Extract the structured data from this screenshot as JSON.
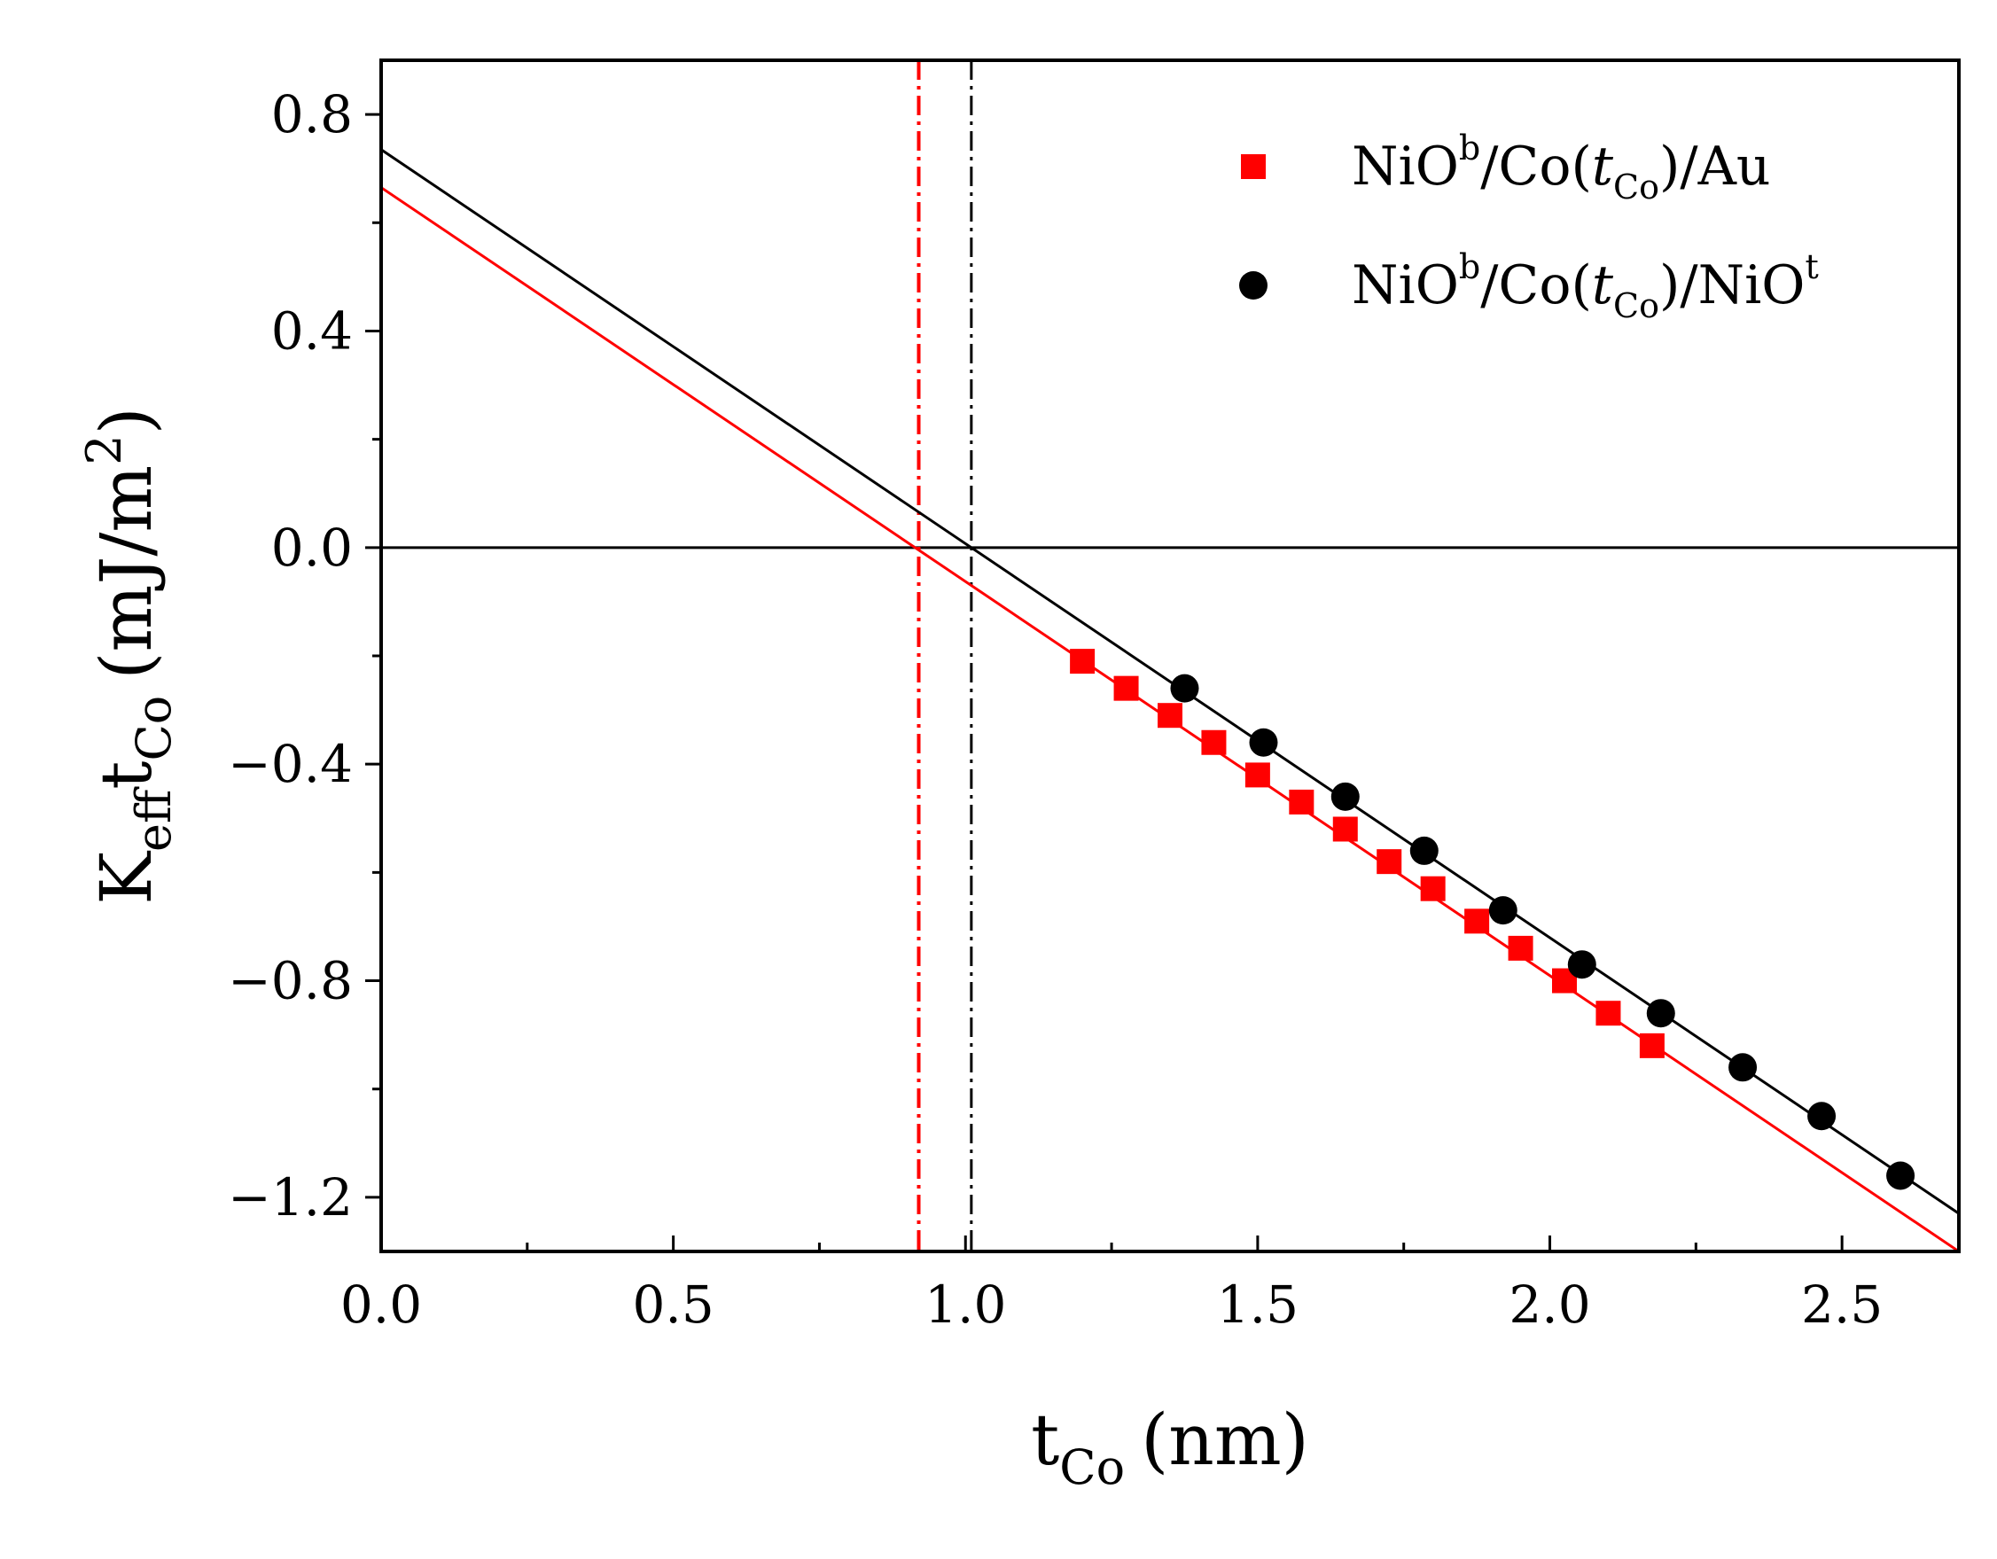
{
  "chart_data": {
    "type": "scatter",
    "title": "",
    "xlabel": {
      "main": "t",
      "sub": "Co",
      "units": "(nm)"
    },
    "ylabel": {
      "k": "K",
      "k_sub": "eff",
      "t": "t",
      "t_sub": "Co",
      "units_open": "(mJ/m",
      "units_sup": "2",
      "units_close": ")"
    },
    "xlim": [
      0.0,
      2.7
    ],
    "ylim": [
      -1.3,
      0.9
    ],
    "xticks": [
      0.0,
      0.5,
      1.0,
      1.5,
      2.0,
      2.5
    ],
    "xtick_labels": [
      "0.0",
      "0.5",
      "1.0",
      "1.5",
      "2.0",
      "2.5"
    ],
    "yticks": [
      0.8,
      0.4,
      0.0,
      -0.4,
      -0.8,
      -1.2
    ],
    "ytick_labels": [
      "0.8",
      "0.4",
      "0.0",
      "−0.4",
      "−0.8",
      "−1.2"
    ],
    "x_minor_ticks": [
      0.25,
      0.75,
      1.25,
      1.75,
      2.25
    ],
    "y_minor_ticks": [
      0.6,
      0.2,
      -0.2,
      -0.6,
      -1.0
    ],
    "grid": false,
    "legend_position": "top-right",
    "series": [
      {
        "name": "NiO^b/Co(t_Co)/Au",
        "legend": {
          "a": "NiO",
          "a_sup": "b",
          "b": "/Co(",
          "b_it": "t",
          "b_sub": "Co",
          "c": ")/Au",
          "c_sup": ""
        },
        "marker": "square",
        "color": "#ff0000",
        "x": [
          1.2,
          1.275,
          1.35,
          1.425,
          1.5,
          1.575,
          1.65,
          1.725,
          1.8,
          1.875,
          1.95,
          2.025,
          2.1,
          2.175
        ],
        "y": [
          -0.21,
          -0.26,
          -0.31,
          -0.36,
          -0.42,
          -0.47,
          -0.52,
          -0.58,
          -0.63,
          -0.69,
          -0.74,
          -0.8,
          -0.86,
          -0.92
        ],
        "fit": {
          "x": [
            0.0,
            2.7
          ],
          "y": [
            0.665,
            -1.3
          ]
        },
        "intercept_x": 0.92
      },
      {
        "name": "NiO^b/Co(t_Co)/NiO^t",
        "legend": {
          "a": "NiO",
          "a_sup": "b",
          "b": "/Co(",
          "b_it": "t",
          "b_sub": "Co",
          "c": ")/NiO",
          "c_sup": "t"
        },
        "marker": "circle",
        "color": "#000000",
        "x": [
          1.375,
          1.51,
          1.65,
          1.785,
          1.92,
          2.055,
          2.19,
          2.33,
          2.465,
          2.6
        ],
        "y": [
          -0.26,
          -0.36,
          -0.46,
          -0.56,
          -0.67,
          -0.77,
          -0.86,
          -0.96,
          -1.05,
          -1.16
        ],
        "fit": {
          "x": [
            0.0,
            2.7
          ],
          "y": [
            0.735,
            -1.23
          ]
        },
        "intercept_x": 1.01
      }
    ],
    "zero_line": 0.0
  }
}
